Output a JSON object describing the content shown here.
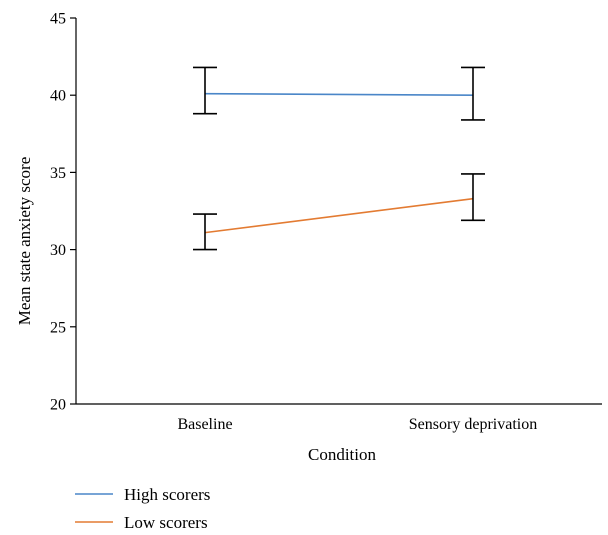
{
  "chart_data": {
    "type": "line",
    "title": "",
    "xlabel": "Condition",
    "ylabel": "Mean state anxiety score",
    "categories": [
      "Baseline",
      "Sensory deprivation"
    ],
    "ylim": [
      20,
      45
    ],
    "yticks": [
      20,
      25,
      30,
      35,
      40,
      45
    ],
    "grid": false,
    "legend_position": "bottom-left",
    "series": [
      {
        "name": "High scorers",
        "color": "#4a86c8",
        "values": [
          40.1,
          40.0
        ],
        "error_low": [
          38.8,
          38.4
        ],
        "error_high": [
          41.8,
          41.8
        ]
      },
      {
        "name": "Low scorers",
        "color": "#e37b32",
        "values": [
          31.1,
          33.3
        ],
        "error_low": [
          30.0,
          31.9
        ],
        "error_high": [
          32.3,
          34.9
        ]
      }
    ]
  }
}
